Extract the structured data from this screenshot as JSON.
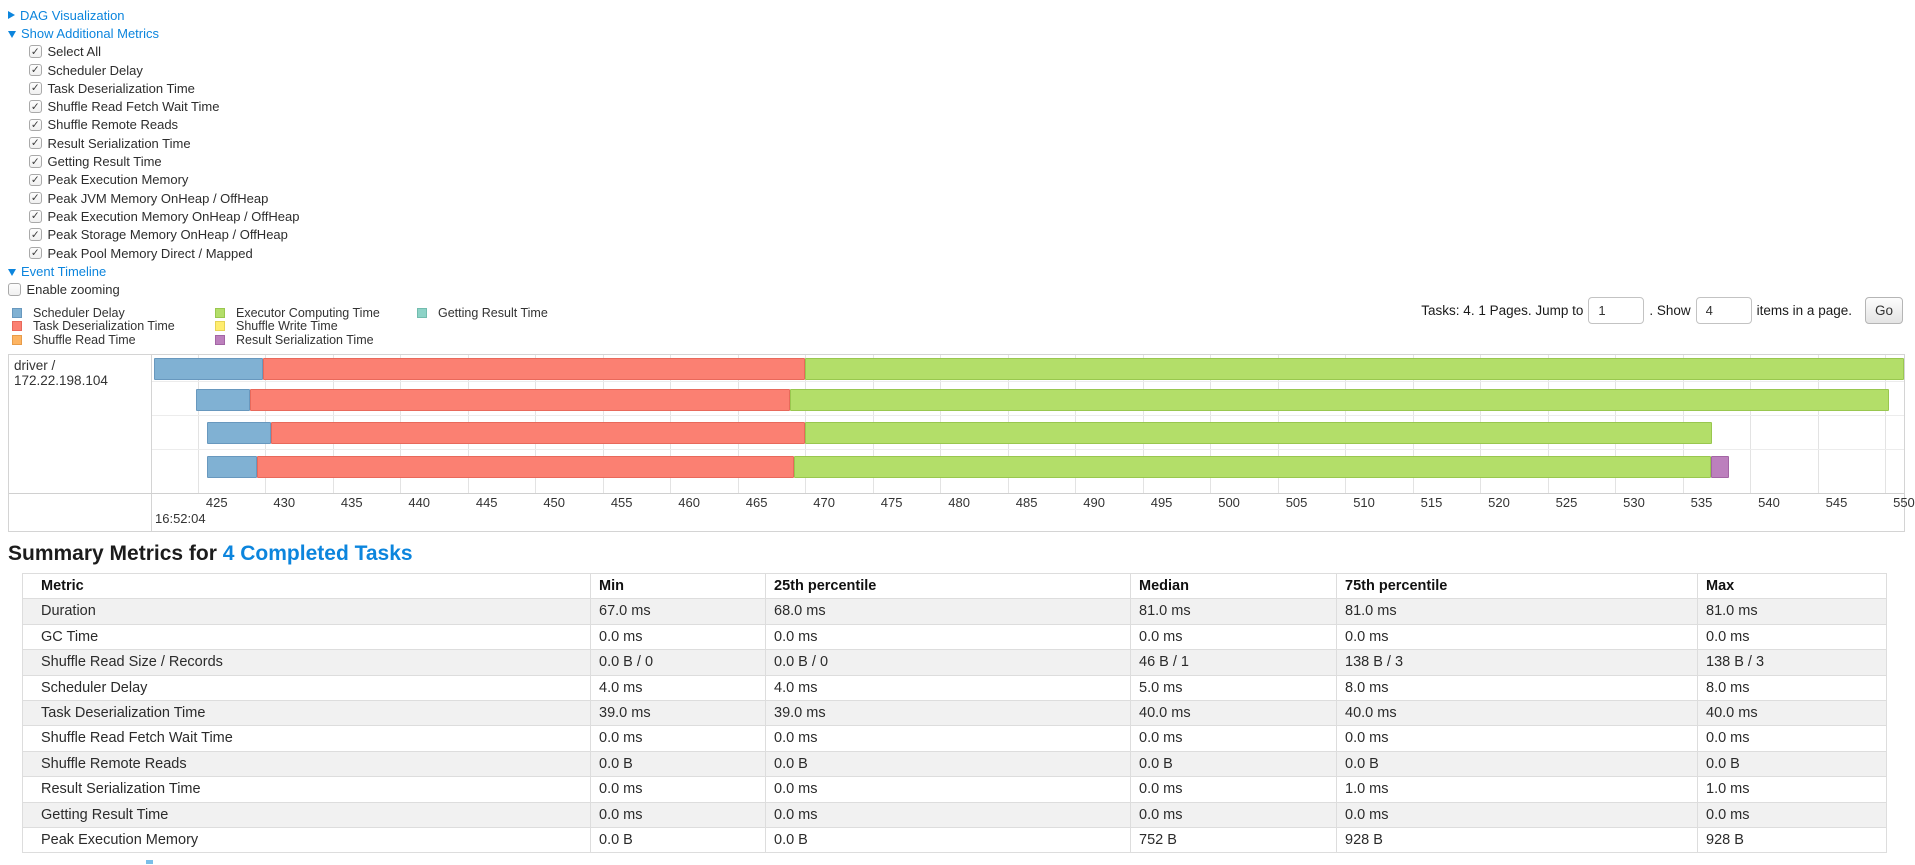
{
  "accent": "#0c85dd",
  "panel": {
    "dag_link": "DAG Visualization",
    "metrics_link": "Show Additional Metrics",
    "metrics_items": [
      "Select All",
      "Scheduler Delay",
      "Task Deserialization Time",
      "Shuffle Read Fetch Wait Time",
      "Shuffle Remote Reads",
      "Result Serialization Time",
      "Getting Result Time",
      "Peak Execution Memory",
      "Peak JVM Memory OnHeap / OffHeap",
      "Peak Execution Memory OnHeap / OffHeap",
      "Peak Storage Memory OnHeap / OffHeap",
      "Peak Pool Memory Direct / Mapped"
    ],
    "timeline_link": "Event Timeline",
    "enable_zooming": "Enable zooming"
  },
  "legend": {
    "columns": [
      [
        {
          "key": "scheduler-delay",
          "label": "Scheduler Delay"
        },
        {
          "key": "task-deserialization",
          "label": "Task Deserialization Time"
        },
        {
          "key": "shuffle-read",
          "label": "Shuffle Read Time"
        }
      ],
      [
        {
          "key": "executor-computing",
          "label": "Executor Computing Time"
        },
        {
          "key": "shuffle-write",
          "label": "Shuffle Write Time"
        },
        {
          "key": "result-serialization",
          "label": "Result Serialization Time"
        }
      ],
      [
        {
          "key": "getting-result",
          "label": "Getting Result Time"
        }
      ]
    ]
  },
  "colors": {
    "scheduler-delay": {
      "fill": "#80B1D3",
      "border": "#6898BE"
    },
    "task-deserialization": {
      "fill": "#FB8072",
      "border": "#E8695B"
    },
    "shuffle-read": {
      "fill": "#FDB462",
      "border": "#E89C49"
    },
    "executor-computing": {
      "fill": "#B3DE69",
      "border": "#99C74F"
    },
    "shuffle-write": {
      "fill": "#FFED6F",
      "border": "#E6D355"
    },
    "result-serialization": {
      "fill": "#BC80BD",
      "border": "#A365A4"
    },
    "getting-result": {
      "fill": "#8DD3C7",
      "border": "#72BCAE"
    }
  },
  "pagination": {
    "tasks_text": "Tasks: 4. 1 Pages. Jump to",
    "jump_value": "1",
    "show_text": ". Show",
    "show_value": "4",
    "items_text": "items in a page.",
    "go_label": "Go"
  },
  "chart_data": {
    "type": "timeline",
    "group_label": "driver / 172.22.198.104",
    "axis": {
      "min": 421.6,
      "max": 551.4,
      "ticks": [
        425,
        430,
        435,
        440,
        445,
        450,
        455,
        460,
        465,
        470,
        475,
        480,
        485,
        490,
        495,
        500,
        505,
        510,
        515,
        520,
        525,
        530,
        535,
        540,
        545,
        550
      ],
      "major_label": "16:52:04",
      "unit": "milliseconds within 16:52:04-16:52:04.550"
    },
    "tasks": [
      {
        "segments": [
          [
            "scheduler-delay",
            421.75,
            429.85
          ],
          [
            "task-deserialization",
            429.85,
            470.0
          ],
          [
            "executor-computing",
            470.0,
            551.4
          ]
        ]
      },
      {
        "segments": [
          [
            "scheduler-delay",
            424.85,
            428.85
          ],
          [
            "task-deserialization",
            428.85,
            468.9
          ],
          [
            "executor-computing",
            468.9,
            550.3
          ]
        ]
      },
      {
        "segments": [
          [
            "scheduler-delay",
            425.7,
            430.4
          ],
          [
            "task-deserialization",
            430.4,
            470.0
          ],
          [
            "executor-computing",
            470.0,
            537.2
          ]
        ]
      },
      {
        "segments": [
          [
            "scheduler-delay",
            425.7,
            429.4
          ],
          [
            "task-deserialization",
            429.4,
            469.2
          ],
          [
            "executor-computing",
            469.2,
            537.1
          ],
          [
            "result-serialization",
            537.1,
            538.4
          ]
        ]
      }
    ]
  },
  "summary": {
    "heading": "Summary Metrics for",
    "heading_link": "4 Completed Tasks",
    "headers": [
      "Metric",
      "Min",
      "25th percentile",
      "Median",
      "75th percentile",
      "Max"
    ],
    "rows": [
      [
        "Duration",
        "67.0 ms",
        "68.0 ms",
        "81.0 ms",
        "81.0 ms",
        "81.0 ms"
      ],
      [
        "GC Time",
        "0.0 ms",
        "0.0 ms",
        "0.0 ms",
        "0.0 ms",
        "0.0 ms"
      ],
      [
        "Shuffle Read Size / Records",
        "0.0 B / 0",
        "0.0 B / 0",
        "46 B / 1",
        "138 B / 3",
        "138 B / 3"
      ],
      [
        "Scheduler Delay",
        "4.0 ms",
        "4.0 ms",
        "5.0 ms",
        "8.0 ms",
        "8.0 ms"
      ],
      [
        "Task Deserialization Time",
        "39.0 ms",
        "39.0 ms",
        "40.0 ms",
        "40.0 ms",
        "40.0 ms"
      ],
      [
        "Shuffle Read Fetch Wait Time",
        "0.0 ms",
        "0.0 ms",
        "0.0 ms",
        "0.0 ms",
        "0.0 ms"
      ],
      [
        "Shuffle Remote Reads",
        "0.0 B",
        "0.0 B",
        "0.0 B",
        "0.0 B",
        "0.0 B"
      ],
      [
        "Result Serialization Time",
        "0.0 ms",
        "0.0 ms",
        "0.0 ms",
        "1.0 ms",
        "1.0 ms"
      ],
      [
        "Getting Result Time",
        "0.0 ms",
        "0.0 ms",
        "0.0 ms",
        "0.0 ms",
        "0.0 ms"
      ],
      [
        "Peak Execution Memory",
        "0.0 B",
        "0.0 B",
        "752 B",
        "928 B",
        "928 B"
      ]
    ]
  }
}
